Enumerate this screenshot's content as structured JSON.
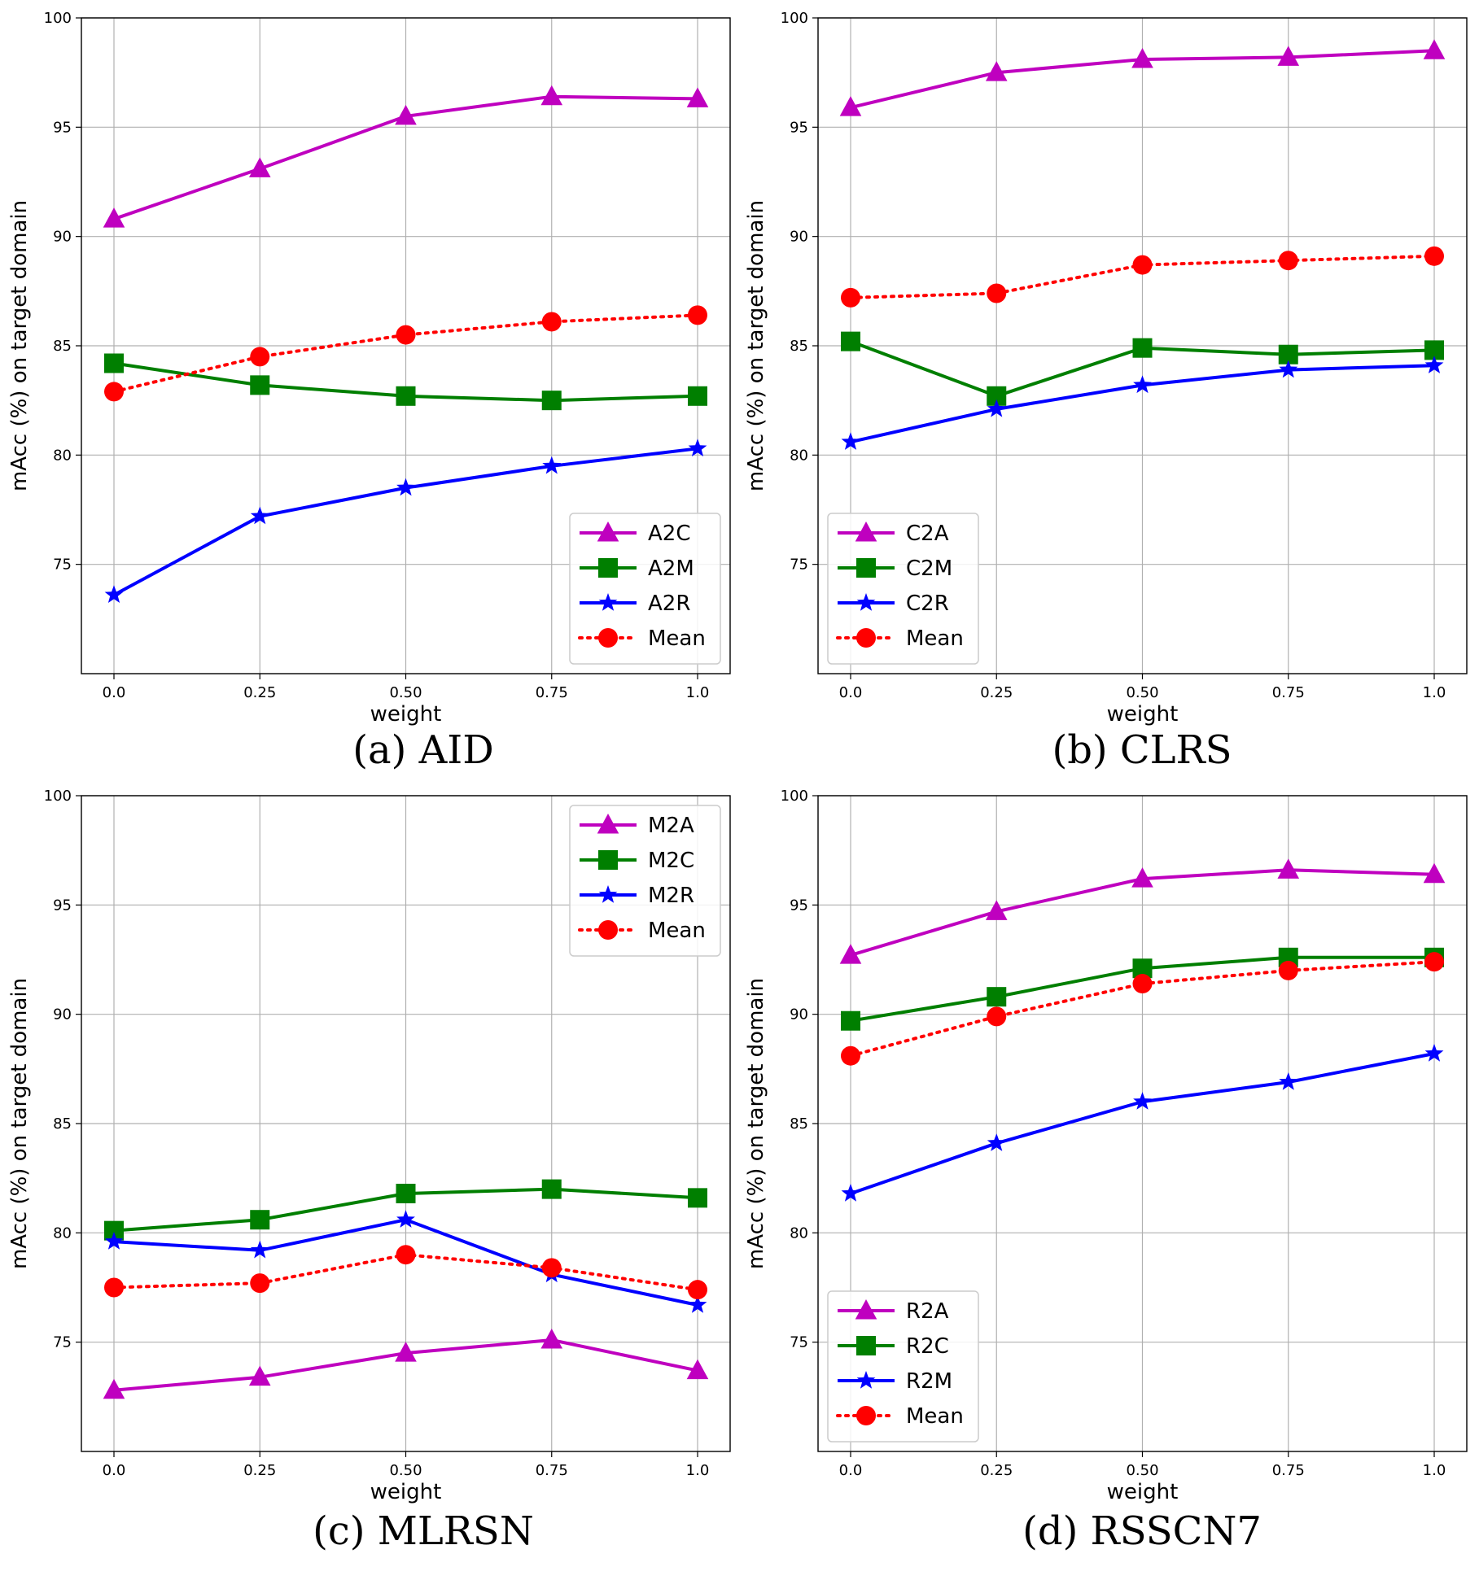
{
  "chart_data": [
    {
      "type": "line",
      "caption": "(a) AID",
      "xlabel": "weight",
      "ylabel": "mAcc (%) on target domain",
      "x": [
        0.0,
        0.25,
        0.5,
        0.75,
        1.0
      ],
      "xtick_labels": [
        "0.0",
        "0.25",
        "0.50",
        "0.75",
        "1.0"
      ],
      "ytick_values": [
        75,
        80,
        85,
        90,
        95,
        100
      ],
      "ylim": [
        70,
        100
      ],
      "legend_position": "bottom-right",
      "grid": true,
      "series": [
        {
          "name": "A2C",
          "values": [
            90.8,
            93.1,
            95.5,
            96.4,
            96.3
          ],
          "color": "#bf00bf",
          "marker": "triangle",
          "line": "solid"
        },
        {
          "name": "A2M",
          "values": [
            84.2,
            83.2,
            82.7,
            82.5,
            82.7
          ],
          "color": "#007f00",
          "marker": "square",
          "line": "solid"
        },
        {
          "name": "A2R",
          "values": [
            73.6,
            77.2,
            78.5,
            79.5,
            80.3
          ],
          "color": "#0000ff",
          "marker": "star",
          "line": "solid"
        },
        {
          "name": "Mean",
          "values": [
            82.9,
            84.5,
            85.5,
            86.1,
            86.4
          ],
          "color": "#ff0000",
          "marker": "circle",
          "line": "dotted"
        }
      ]
    },
    {
      "type": "line",
      "caption": "(b) CLRS",
      "xlabel": "weight",
      "ylabel": "mAcc (%) on target domain",
      "x": [
        0.0,
        0.25,
        0.5,
        0.75,
        1.0
      ],
      "xtick_labels": [
        "0.0",
        "0.25",
        "0.50",
        "0.75",
        "1.0"
      ],
      "ytick_values": [
        75,
        80,
        85,
        90,
        95,
        100
      ],
      "ylim": [
        70,
        100
      ],
      "legend_position": "bottom-left",
      "grid": true,
      "series": [
        {
          "name": "C2A",
          "values": [
            95.9,
            97.5,
            98.1,
            98.2,
            98.5
          ],
          "color": "#bf00bf",
          "marker": "triangle",
          "line": "solid"
        },
        {
          "name": "C2M",
          "values": [
            85.2,
            82.7,
            84.9,
            84.6,
            84.8
          ],
          "color": "#007f00",
          "marker": "square",
          "line": "solid"
        },
        {
          "name": "C2R",
          "values": [
            80.6,
            82.1,
            83.2,
            83.9,
            84.1
          ],
          "color": "#0000ff",
          "marker": "star",
          "line": "solid"
        },
        {
          "name": "Mean",
          "values": [
            87.2,
            87.4,
            88.7,
            88.9,
            89.1
          ],
          "color": "#ff0000",
          "marker": "circle",
          "line": "dotted"
        }
      ]
    },
    {
      "type": "line",
      "caption": "(c) MLRSN",
      "xlabel": "weight",
      "ylabel": "mAcc (%) on target domain",
      "x": [
        0.0,
        0.25,
        0.5,
        0.75,
        1.0
      ],
      "xtick_labels": [
        "0.0",
        "0.25",
        "0.50",
        "0.75",
        "1.0"
      ],
      "ytick_values": [
        75,
        80,
        85,
        90,
        95,
        100
      ],
      "ylim": [
        70,
        100
      ],
      "legend_position": "top-right",
      "grid": true,
      "series": [
        {
          "name": "M2A",
          "values": [
            72.8,
            73.4,
            74.5,
            75.1,
            73.7
          ],
          "color": "#bf00bf",
          "marker": "triangle",
          "line": "solid"
        },
        {
          "name": "M2C",
          "values": [
            80.1,
            80.6,
            81.8,
            82.0,
            81.6
          ],
          "color": "#007f00",
          "marker": "square",
          "line": "solid"
        },
        {
          "name": "M2R",
          "values": [
            79.6,
            79.2,
            80.6,
            78.1,
            76.7
          ],
          "color": "#0000ff",
          "marker": "star",
          "line": "solid"
        },
        {
          "name": "Mean",
          "values": [
            77.5,
            77.7,
            79.0,
            78.4,
            77.4
          ],
          "color": "#ff0000",
          "marker": "circle",
          "line": "dotted"
        }
      ]
    },
    {
      "type": "line",
      "caption": "(d) RSSCN7",
      "xlabel": "weight",
      "ylabel": "mAcc (%) on target domain",
      "x": [
        0.0,
        0.25,
        0.5,
        0.75,
        1.0
      ],
      "xtick_labels": [
        "0.0",
        "0.25",
        "0.50",
        "0.75",
        "1.0"
      ],
      "ytick_values": [
        75,
        80,
        85,
        90,
        95,
        100
      ],
      "ylim": [
        70,
        100
      ],
      "legend_position": "bottom-left",
      "grid": true,
      "series": [
        {
          "name": "R2A",
          "values": [
            92.7,
            94.7,
            96.2,
            96.6,
            96.4
          ],
          "color": "#bf00bf",
          "marker": "triangle",
          "line": "solid"
        },
        {
          "name": "R2C",
          "values": [
            89.7,
            90.8,
            92.1,
            92.6,
            92.6
          ],
          "color": "#007f00",
          "marker": "square",
          "line": "solid"
        },
        {
          "name": "R2M",
          "values": [
            81.8,
            84.1,
            86.0,
            86.9,
            88.2
          ],
          "color": "#0000ff",
          "marker": "star",
          "line": "solid"
        },
        {
          "name": "Mean",
          "values": [
            88.1,
            89.9,
            91.4,
            92.0,
            92.4
          ],
          "color": "#ff0000",
          "marker": "circle",
          "line": "dotted"
        }
      ]
    }
  ]
}
